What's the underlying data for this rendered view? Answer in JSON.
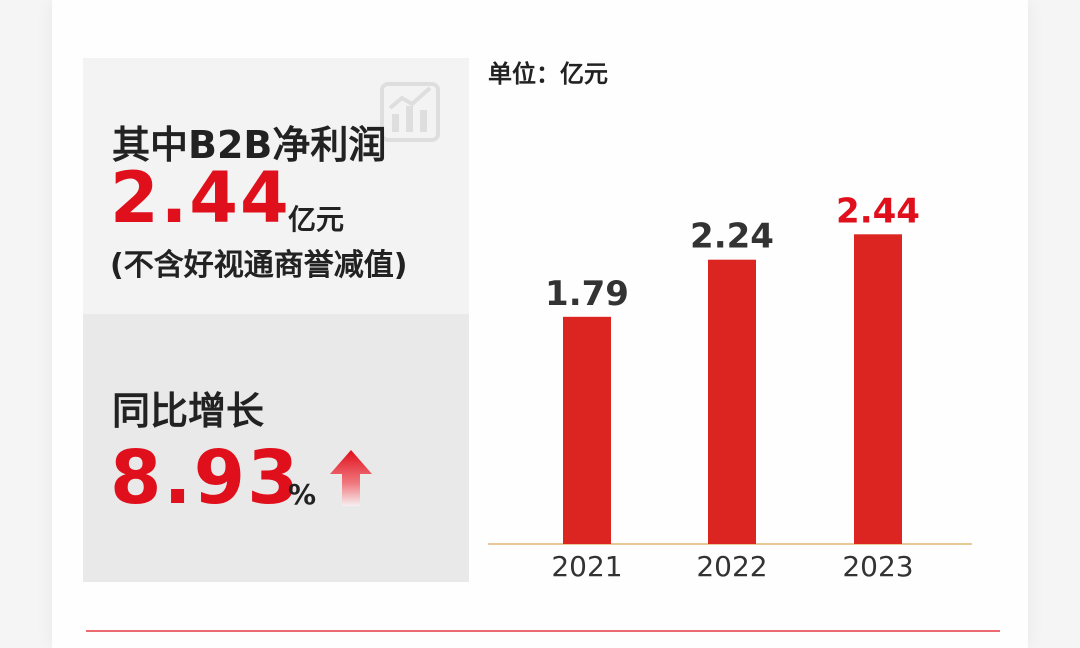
{
  "left": {
    "title": "其中B2B净利润",
    "value": "2.44",
    "value_unit": "亿元",
    "note": "(不含好视通商誉减值)",
    "growth_label": "同比增长",
    "growth_value": "8.93",
    "growth_unit": "%"
  },
  "chart_data": {
    "type": "bar",
    "unit_label": "单位：亿元",
    "categories": [
      "2021",
      "2022",
      "2023"
    ],
    "values": [
      1.79,
      2.24,
      2.44
    ],
    "value_labels": [
      "1.79",
      "2.24",
      "2.44"
    ],
    "label_colors": [
      "#333333",
      "#333333",
      "#e00f1c"
    ],
    "bar_color": "#dc2520",
    "ylim": [
      0,
      2.6
    ]
  }
}
